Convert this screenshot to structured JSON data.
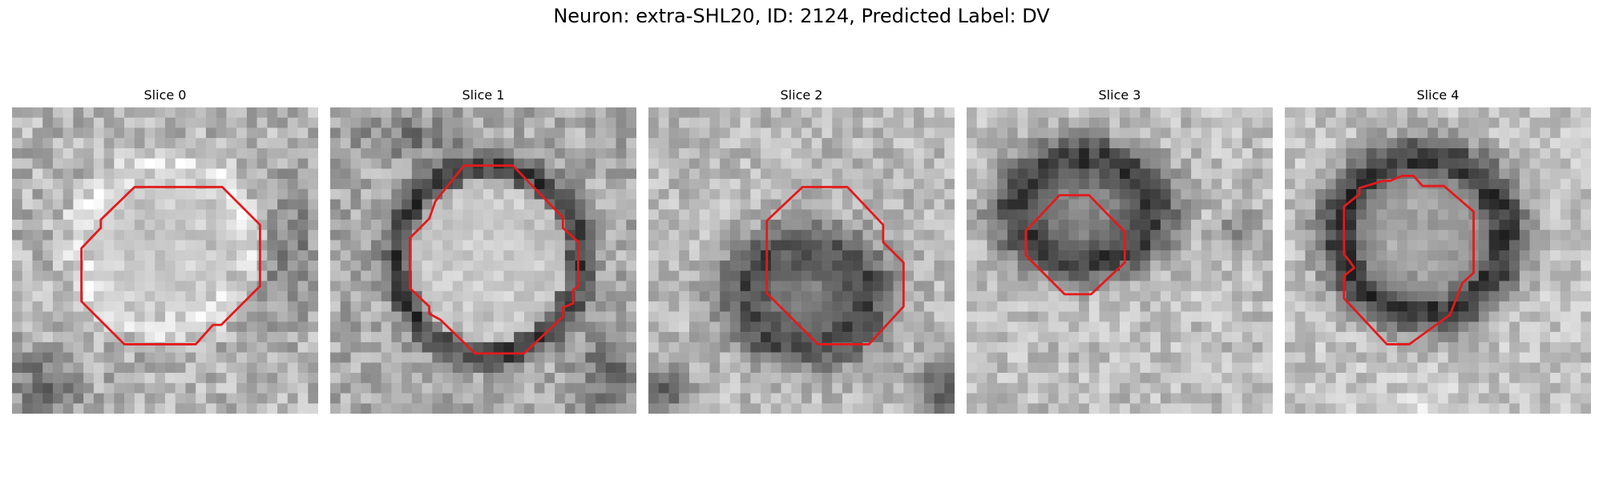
{
  "figure": {
    "title": "Neuron: extra-SHL20, ID: 2124, Predicted Label: DV",
    "contour_color": "#e31a1c"
  },
  "panels": [
    {
      "title": "Slice 0",
      "image_description": "grayscale microscopy patch; light round cell body with faint gray rim"
    },
    {
      "title": "Slice 1",
      "image_description": "grayscale microscopy patch; bright round cell body with dark ring"
    },
    {
      "title": "Slice 2",
      "image_description": "grayscale microscopy patch; dark blotch in center on light background"
    },
    {
      "title": "Slice 3",
      "image_description": "grayscale microscopy patch; dark ring with gray center in upper area"
    },
    {
      "title": "Slice 4",
      "image_description": "grayscale microscopy patch; dark ring with lighter gray center"
    }
  ]
}
